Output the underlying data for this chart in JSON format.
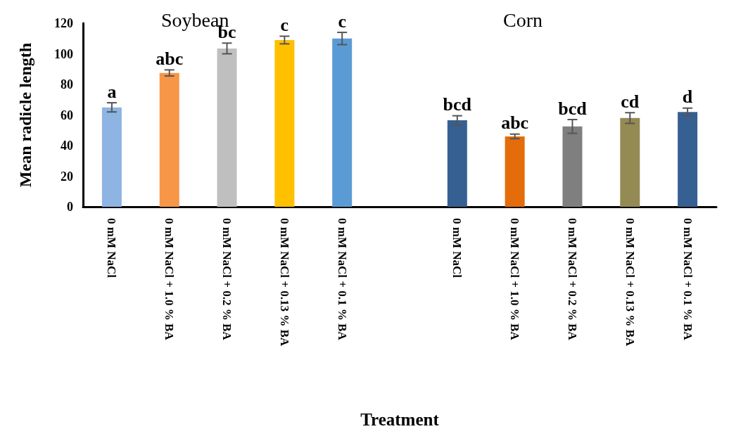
{
  "chart_data": {
    "type": "bar",
    "xlabel": "Treatment",
    "ylabel": "Mean radicle length",
    "categories": [
      "0 mM NaCl",
      "0 mM NaCl + 1.0 % BA",
      "0 mM NaCl + 0.2 % BA",
      "0 mM NaCl + 0.13 % BA",
      "0 mM NaCl + 0.1 % BA",
      null,
      "0 mM NaCl",
      "0 mM NaCl + 1.0 % BA",
      "0 mM NaCl + 0.2 % BA",
      "0 mM NaCl + 0.13 % BA",
      "0 mM NaCl + 0.1 % BA"
    ],
    "values": [
      65,
      87.5,
      103.5,
      109,
      110,
      null,
      56.5,
      46,
      52.5,
      58,
      62
    ],
    "errors": [
      3,
      2,
      3.5,
      2.5,
      4,
      null,
      3,
      1.5,
      4.5,
      3.5,
      2.5
    ],
    "value_labels": [
      "a",
      "abc",
      "bc",
      "c",
      "c",
      null,
      "bcd",
      "abc",
      "bcd",
      "cd",
      "d"
    ],
    "colors": [
      "#8eb4e3",
      "#f79646",
      "#bfbfbf",
      "#ffc000",
      "#5b9bd5",
      null,
      "#366092",
      "#e46c0a",
      "#7f7f7f",
      "#948a54",
      "#366092"
    ],
    "annotations": [
      "Soybean",
      "Corn"
    ],
    "ylim": [
      0,
      120
    ],
    "yticks": [
      0,
      20,
      40,
      60,
      80,
      100,
      120
    ],
    "grid": false
  }
}
